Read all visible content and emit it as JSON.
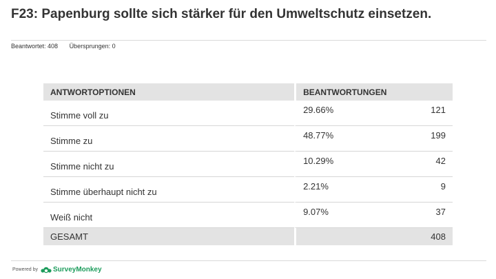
{
  "question": {
    "title": "F23: Papenburg sollte sich stärker für den Umweltschutz einsetzen.",
    "answered": "Beantwortet: 408",
    "skipped": "Übersprungen: 0"
  },
  "table": {
    "headers": [
      "ANTWORTOPTIONEN",
      "BEANTWORTUNGEN"
    ],
    "rows": [
      {
        "option": "Stimme voll zu",
        "percent": "29.66%",
        "count": "121"
      },
      {
        "option": "Stimme zu",
        "percent": "48.77%",
        "count": "199"
      },
      {
        "option": "Stimme nicht zu",
        "percent": "10.29%",
        "count": "42"
      },
      {
        "option": "Stimme überhaupt nicht zu",
        "percent": "2.21%",
        "count": "9"
      },
      {
        "option": "Weiß nicht",
        "percent": "9.07%",
        "count": "37"
      }
    ],
    "total": {
      "label": "GESAMT",
      "count": "408"
    }
  },
  "footer": {
    "powered_by": "Powered by",
    "brand": "SurveyMonkey",
    "brand_icon": "surveymonkey-logo-icon",
    "brand_color": "#1d9c5c"
  }
}
